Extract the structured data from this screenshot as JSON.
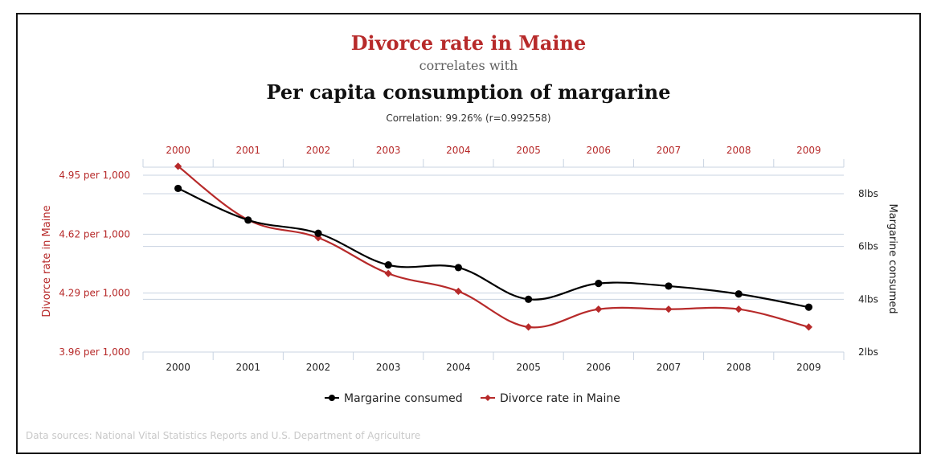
{
  "title": "Divorce rate in Maine",
  "subtitle": "correlates with",
  "title2": "Per capita consumption of margarine",
  "correlation": "Correlation: 99.26% (r=0.992558)",
  "source": "Data sources: National Vital Statistics Reports and U.S. Department of Agriculture",
  "colors": {
    "divorce": "#b72a2a",
    "margarine": "#000000",
    "grid": "#c8d3e1",
    "axis_text": "#222222"
  },
  "chart_data": {
    "type": "line",
    "categories": [
      "2000",
      "2001",
      "2002",
      "2003",
      "2004",
      "2005",
      "2006",
      "2007",
      "2008",
      "2009"
    ],
    "series": [
      {
        "name": "Margarine consumed",
        "axis": "right",
        "marker": "circle",
        "color": "#000000",
        "values": [
          8.2,
          7.0,
          6.5,
          5.3,
          5.2,
          4.0,
          4.6,
          4.5,
          4.2,
          3.7
        ]
      },
      {
        "name": "Divorce rate in Maine",
        "axis": "left",
        "marker": "diamond",
        "color": "#b72a2a",
        "values": [
          5.0,
          4.7,
          4.6,
          4.4,
          4.3,
          4.1,
          4.2,
          4.2,
          4.2,
          4.1
        ]
      }
    ],
    "y_left": {
      "label": "Divorce rate in Maine",
      "range": [
        3.96,
        5.0
      ],
      "ticks": [
        {
          "value": 3.96,
          "label": "3.96 per 1,000"
        },
        {
          "value": 4.29,
          "label": "4.29 per 1,000"
        },
        {
          "value": 4.62,
          "label": "4.62 per 1,000"
        },
        {
          "value": 4.95,
          "label": "4.95 per 1,000"
        }
      ]
    },
    "y_right": {
      "label": "Margarine consumed",
      "range": [
        2,
        9.0
      ],
      "ticks": [
        {
          "value": 2,
          "label": "2lbs"
        },
        {
          "value": 4,
          "label": "4lbs"
        },
        {
          "value": 6,
          "label": "6lbs"
        },
        {
          "value": 8,
          "label": "8lbs"
        }
      ]
    },
    "legend": [
      "Margarine consumed",
      "Divorce rate in Maine"
    ],
    "legend_position": "bottom-center",
    "grid": true
  }
}
